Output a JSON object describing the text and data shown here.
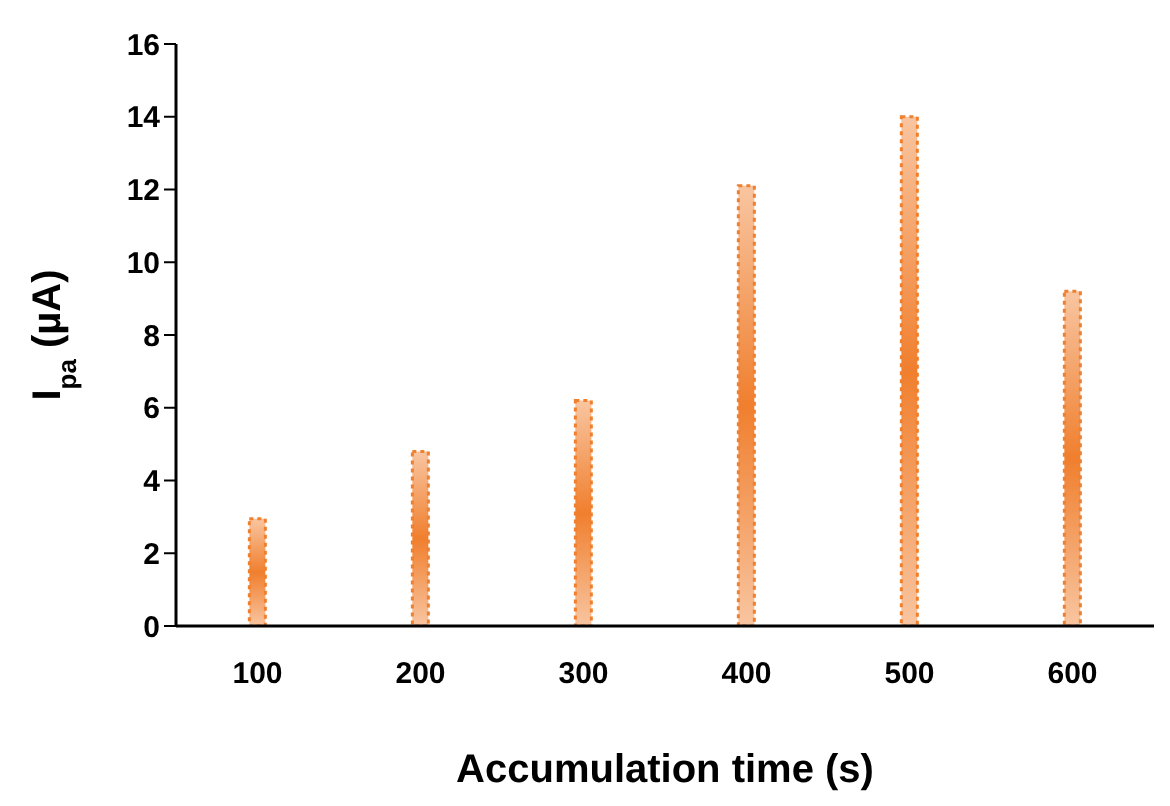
{
  "chart_data": {
    "type": "bar",
    "xlabel": "Accumulation time (s)",
    "ylabel": "I$_{pa}$ (µA)",
    "categories": [
      "100",
      "200",
      "300",
      "400",
      "500",
      "600"
    ],
    "values": [
      2.95,
      4.8,
      6.2,
      12.1,
      14.0,
      9.2
    ],
    "color": "#f07f2e",
    "ylim": [
      0,
      16
    ],
    "yticks": [
      0,
      2,
      4,
      6,
      8,
      10,
      12,
      14,
      16
    ],
    "grid": false,
    "legend": false
  }
}
